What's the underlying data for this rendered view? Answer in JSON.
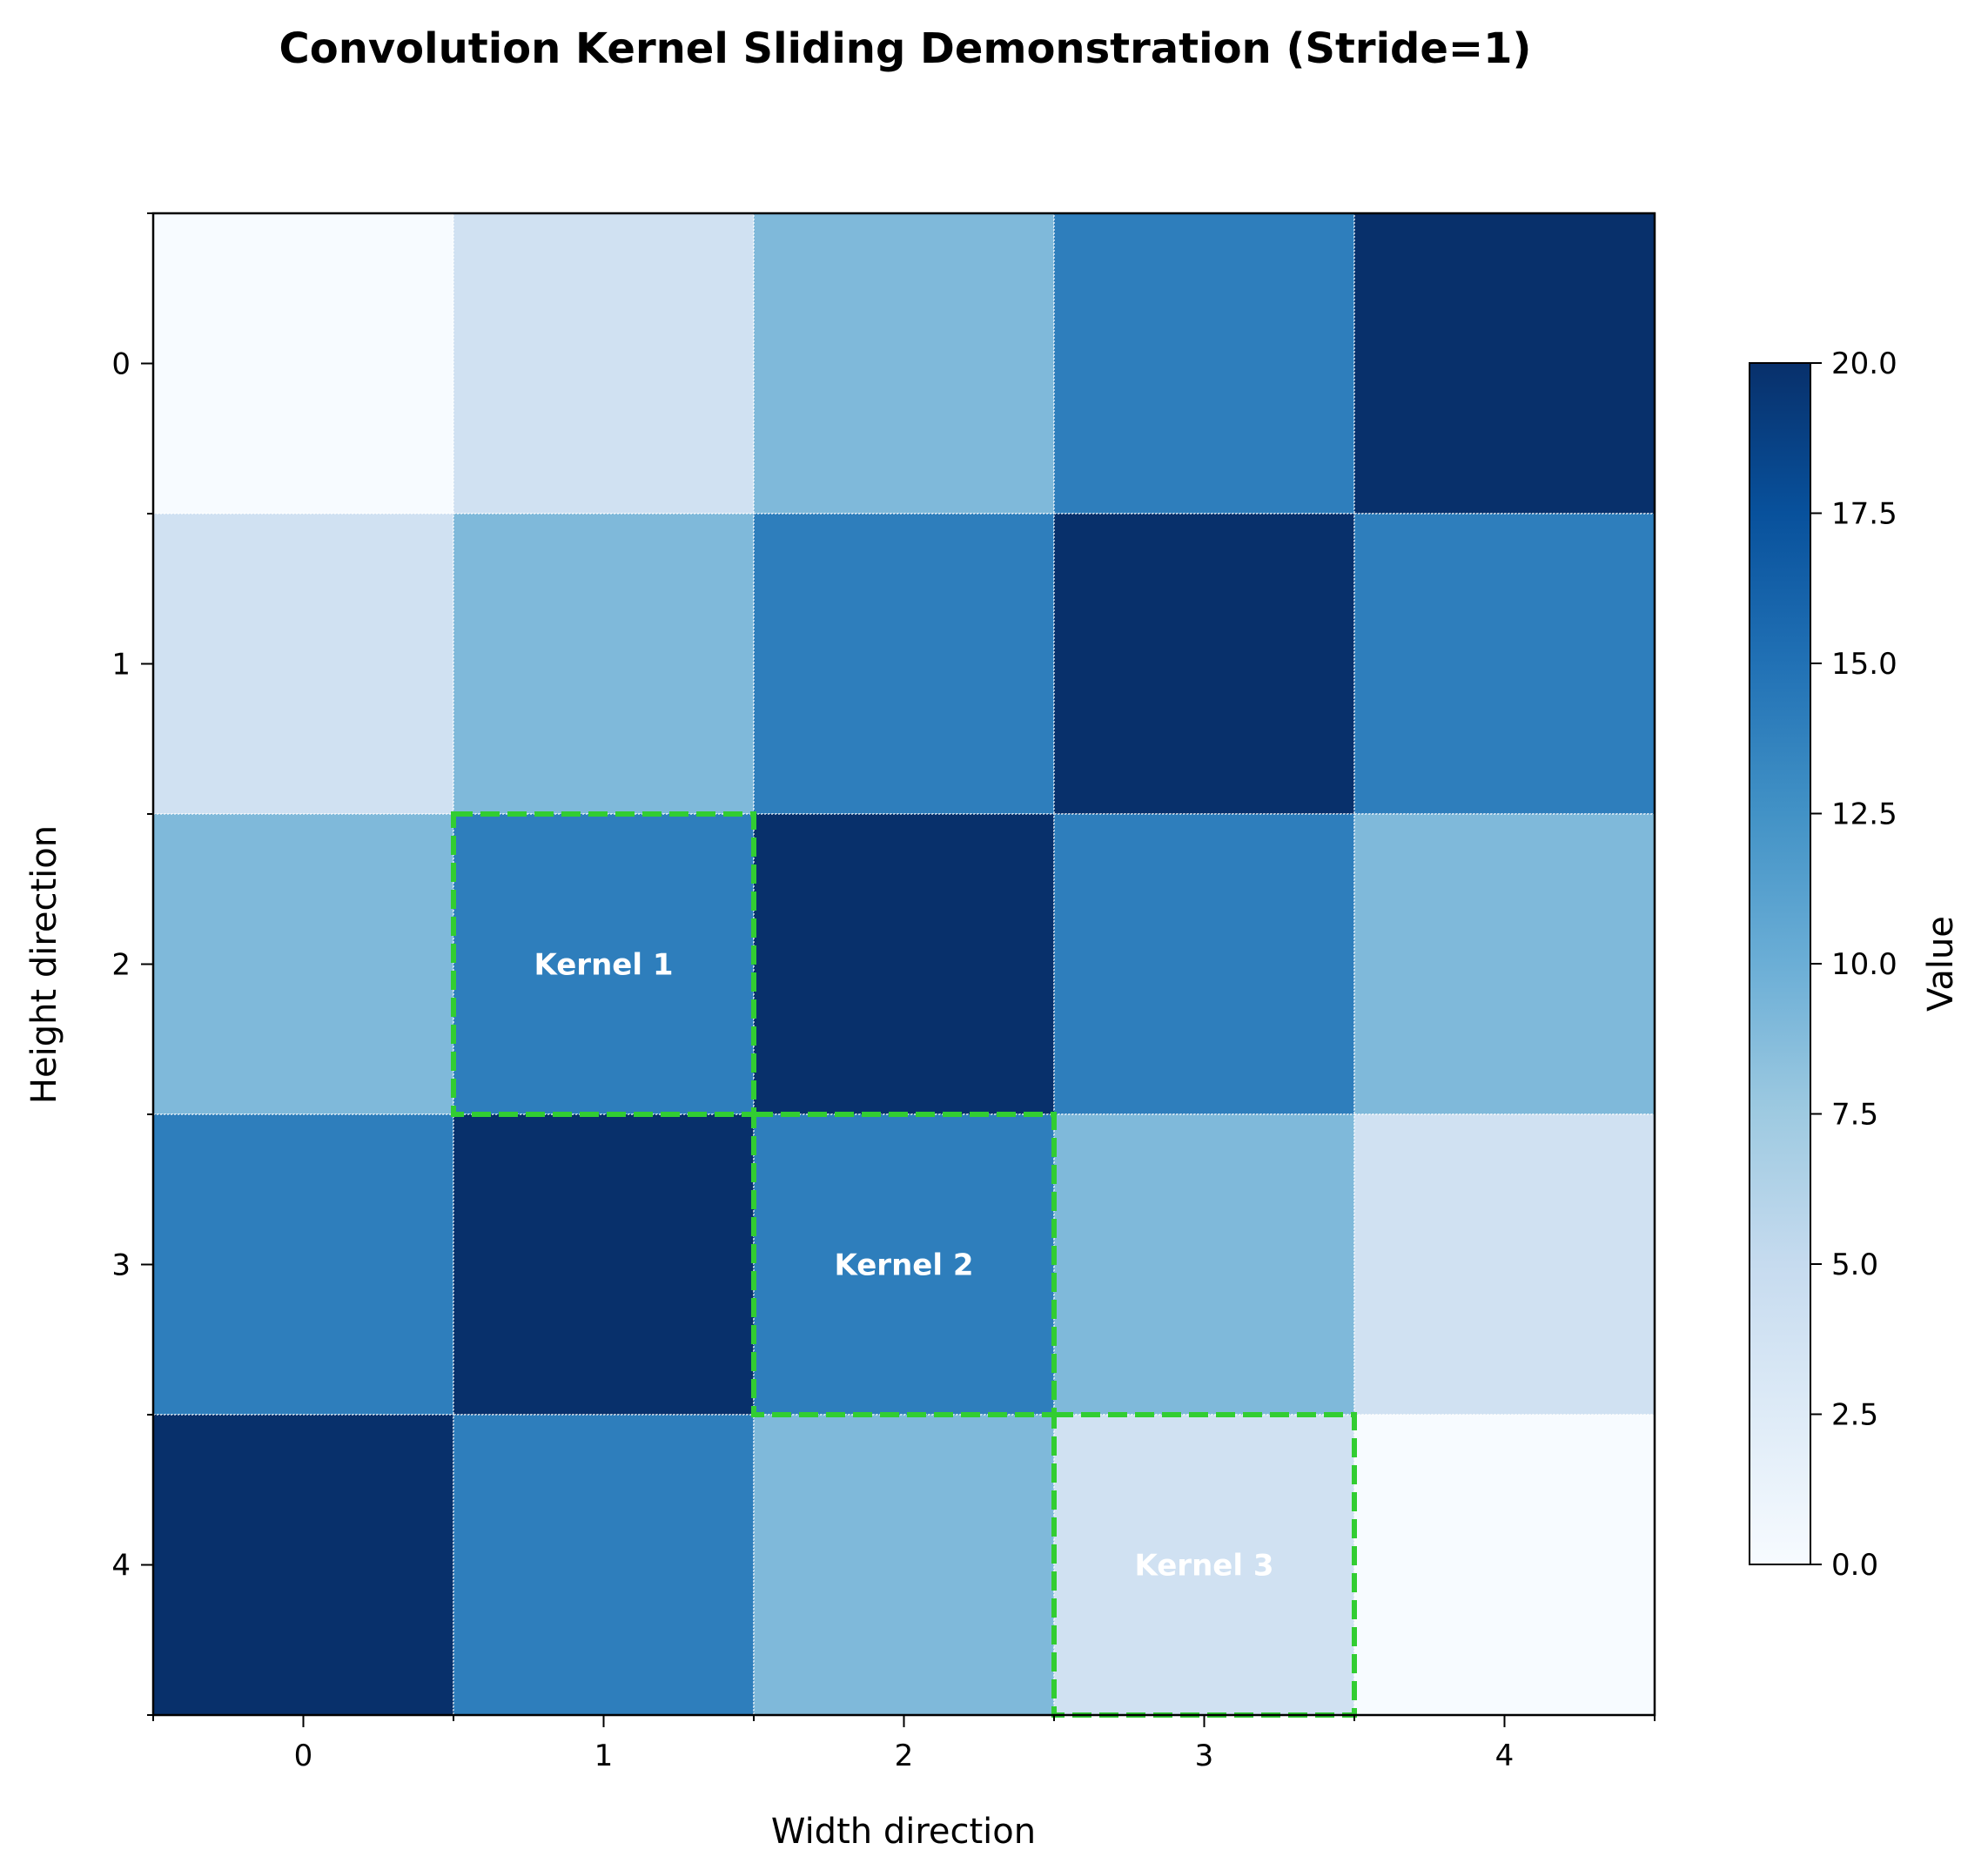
{
  "chart_data": {
    "type": "heatmap",
    "title": "Convolution Kernel Sliding Demonstration (Stride=1)",
    "xlabel": "Width direction",
    "ylabel": "Height direction",
    "x_ticks": [
      "0",
      "1",
      "2",
      "3",
      "4"
    ],
    "y_ticks": [
      "0",
      "1",
      "2",
      "3",
      "4"
    ],
    "values": [
      [
        0,
        4,
        9,
        14,
        20
      ],
      [
        4,
        9,
        14,
        20,
        14
      ],
      [
        9,
        14,
        20,
        14,
        9
      ],
      [
        14,
        20,
        14,
        9,
        4
      ],
      [
        20,
        14,
        9,
        4,
        0
      ]
    ],
    "colormap": "Blues",
    "vmin": 0,
    "vmax": 20,
    "colorbar": {
      "label": "Value",
      "ticks": [
        "0.0",
        "2.5",
        "5.0",
        "7.5",
        "10.0",
        "12.5",
        "15.0",
        "17.5",
        "20.0"
      ]
    },
    "kernels": [
      {
        "label": "Kernel 1",
        "row": 2,
        "col": 1
      },
      {
        "label": "Kernel 2",
        "row": 3,
        "col": 2
      },
      {
        "label": "Kernel 3",
        "row": 4,
        "col": 3
      }
    ],
    "kernel_color": "#32cd32"
  }
}
